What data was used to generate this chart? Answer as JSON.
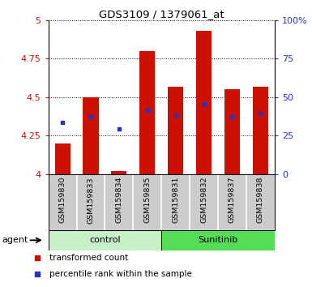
{
  "title": "GDS3109 / 1379061_at",
  "samples": [
    "GSM159830",
    "GSM159833",
    "GSM159834",
    "GSM159835",
    "GSM159831",
    "GSM159832",
    "GSM159837",
    "GSM159838"
  ],
  "red_values": [
    4.2,
    4.5,
    4.02,
    4.8,
    4.57,
    4.93,
    4.55,
    4.57
  ],
  "blue_values": [
    4.335,
    4.375,
    4.295,
    4.415,
    4.385,
    4.455,
    4.375,
    4.395
  ],
  "ylim_left": [
    4.0,
    5.0
  ],
  "ylim_right": [
    0,
    100
  ],
  "yticks_left": [
    4.0,
    4.25,
    4.5,
    4.75,
    5.0
  ],
  "yticks_right": [
    0,
    25,
    50,
    75,
    100
  ],
  "ytick_labels_left": [
    "4",
    "4.25",
    "4.5",
    "4.75",
    "5"
  ],
  "ytick_labels_right": [
    "0",
    "25",
    "50",
    "75",
    "100%"
  ],
  "groups": [
    {
      "label": "control",
      "indices": [
        0,
        1,
        2,
        3
      ],
      "color": "#c8f0c8"
    },
    {
      "label": "Sunitinib",
      "indices": [
        4,
        5,
        6,
        7
      ],
      "color": "#55dd55"
    }
  ],
  "agent_label": "agent",
  "bar_color": "#cc1100",
  "blue_color": "#2233cc",
  "bar_width": 0.55,
  "legend_items": [
    {
      "label": "transformed count",
      "color": "#cc1100"
    },
    {
      "label": "percentile rank within the sample",
      "color": "#2233cc"
    }
  ],
  "background_color": "#ffffff",
  "plot_bg": "#ffffff",
  "tick_area_bg": "#cccccc"
}
